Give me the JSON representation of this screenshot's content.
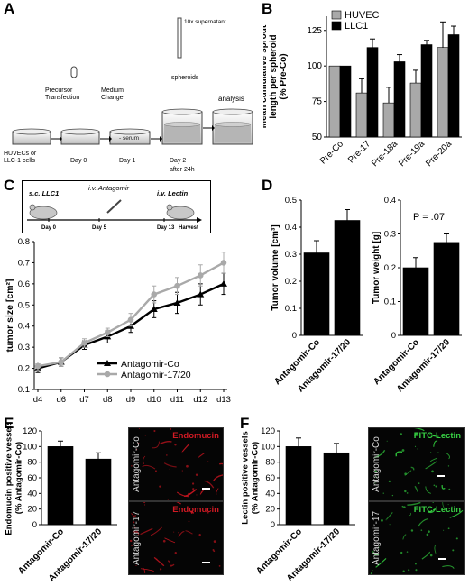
{
  "figure": {
    "panels": {
      "A": {
        "label": "A",
        "steps": [
          {
            "top": "",
            "bottom": "HUVECs or\nLLC-1 cells"
          },
          {
            "top": "Precursor\nTransfection",
            "bottom": "Day 0"
          },
          {
            "top": "Medium\nChange",
            "bottom": "Day 1",
            "inner": "- serum"
          },
          {
            "top": "10x supernatant",
            "bottom": "Day 2"
          },
          {
            "top": "spheroids",
            "bottom": "after 24h"
          },
          {
            "top": "analysis",
            "bottom": ""
          }
        ]
      },
      "B": {
        "label": "B",
        "chart_data": {
          "type": "bar",
          "categories": [
            "Pre-Co",
            "Pre-17",
            "Pre-18a",
            "Pre-19a",
            "Pre-20a"
          ],
          "series": [
            {
              "name": "HUVEC",
              "color": "#a9a9a9",
              "values": [
                100,
                81,
                74,
                88,
                113
              ],
              "errors": [
                0,
                10,
                11,
                9,
                18
              ]
            },
            {
              "name": "LLC1",
              "color": "#000000",
              "values": [
                100,
                113,
                103,
                115,
                122
              ],
              "errors": [
                0,
                6,
                5,
                3,
                6
              ]
            }
          ],
          "ylabel": "Mean cumulative sprout\nlength per spheroid\n(% Pre-Co)",
          "ylim": [
            50,
            135
          ],
          "yticks": [
            50,
            75,
            100,
            125
          ],
          "legend": "top-left"
        }
      },
      "C": {
        "label": "C",
        "schematic": {
          "left_label": "s.c. LLC1",
          "mid_label": "i.v. Antagomir",
          "right_label": "i.v. Lectin",
          "days": [
            "Day 0",
            "Day 5",
            "Day 13"
          ],
          "end_label": "Harvest"
        },
        "chart_data": {
          "type": "line",
          "categories": [
            "d4",
            "d6",
            "d7",
            "d8",
            "d9",
            "d10",
            "d11",
            "d12",
            "d13"
          ],
          "series": [
            {
              "name": "Antagomir-Co",
              "color": "#000000",
              "marker": "triangle",
              "values": [
                0.2,
                0.23,
                0.31,
                0.35,
                0.4,
                0.48,
                0.51,
                0.55,
                0.6
              ],
              "errors": [
                0.02,
                0.02,
                0.02,
                0.03,
                0.03,
                0.04,
                0.05,
                0.05,
                0.05
              ]
            },
            {
              "name": "Antagomir-17/20",
              "color": "#a9a9a9",
              "marker": "circle",
              "values": [
                0.21,
                0.23,
                0.32,
                0.37,
                0.43,
                0.55,
                0.59,
                0.64,
                0.7
              ],
              "errors": [
                0.02,
                0.02,
                0.02,
                0.02,
                0.03,
                0.04,
                0.04,
                0.05,
                0.05
              ]
            }
          ],
          "ylabel": "tumor size [cm²]",
          "ylim": [
            0.1,
            0.8
          ],
          "yticks": [
            0.1,
            0.2,
            0.3,
            0.4,
            0.5,
            0.6,
            0.7,
            0.8
          ],
          "legend": "bottom-right"
        }
      },
      "D": {
        "label": "D",
        "charts": [
          {
            "type": "bar",
            "categories": [
              "Antagomir-Co",
              "Antagomir-17/20"
            ],
            "values": [
              0.305,
              0.425
            ],
            "errors": [
              0.045,
              0.04
            ],
            "ylabel": "Tumor volume [cm³]",
            "ylim": [
              0,
              0.5
            ],
            "yticks": [
              0,
              0.1,
              0.2,
              0.3,
              0.4,
              0.5
            ]
          },
          {
            "type": "bar",
            "categories": [
              "Antagomir-Co",
              "Antagomir-17/20"
            ],
            "values": [
              0.2,
              0.275
            ],
            "errors": [
              0.03,
              0.025
            ],
            "ylabel": "Tumor weight [g]",
            "ylim": [
              0,
              0.4
            ],
            "yticks": [
              0,
              0.1,
              0.2,
              0.3,
              0.4
            ],
            "annotation": "P = .07"
          }
        ]
      },
      "E": {
        "label": "E",
        "chart_data": {
          "type": "bar",
          "categories": [
            "Antagomir-Co",
            "Antagomir-17/20"
          ],
          "values": [
            100,
            84
          ],
          "errors": [
            7,
            8
          ],
          "ylabel": "Endomucin positive vessels\n(% Antagomir-Co)",
          "ylim": [
            0,
            120
          ],
          "yticks": [
            0,
            20,
            40,
            60,
            80,
            100,
            120
          ]
        },
        "images": [
          {
            "stain": "Endomucin",
            "side": "Antagomir-Co",
            "color": "#c0141e"
          },
          {
            "stain": "Endomucin",
            "side": "Antagomir-17",
            "color": "#c0141e"
          }
        ]
      },
      "F": {
        "label": "F",
        "chart_data": {
          "type": "bar",
          "categories": [
            "Antagomir-Co",
            "Antagomir-17/20"
          ],
          "values": [
            100,
            92
          ],
          "errors": [
            11,
            12
          ],
          "ylabel": "Lectin positive vessels\n(% Antagomir-Co)",
          "ylim": [
            0,
            120
          ],
          "yticks": [
            0,
            20,
            40,
            60,
            80,
            100,
            120
          ]
        },
        "images": [
          {
            "stain": "FITC-Lectin",
            "side": "Antagomir-Co",
            "color": "#2fc23a"
          },
          {
            "stain": "FITC-Lectin",
            "side": "Antagomir-17",
            "color": "#2fc23a"
          }
        ]
      }
    }
  }
}
